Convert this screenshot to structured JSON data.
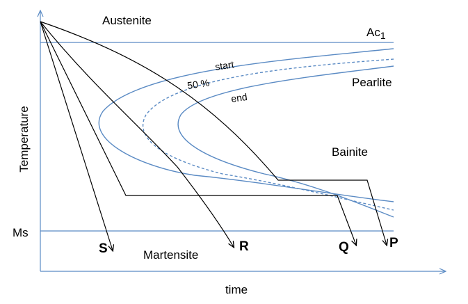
{
  "axes": {
    "ylabel": "Temperature",
    "xlabel": "time"
  },
  "levels": {
    "ac1_main": "Ac",
    "ac1_sub": "1",
    "ms": "Ms"
  },
  "regions": {
    "austenite": "Austenite",
    "pearlite": "Pearlite",
    "bainite": "Bainite",
    "martensite": "Martensite"
  },
  "curves": {
    "start": "start",
    "fifty": "50 %",
    "end": "end"
  },
  "cooling_paths": {
    "s": "S",
    "r": "R",
    "q": "Q",
    "p": "P"
  },
  "colors": {
    "curve": "#5b8bc4",
    "path": "#000000"
  }
}
